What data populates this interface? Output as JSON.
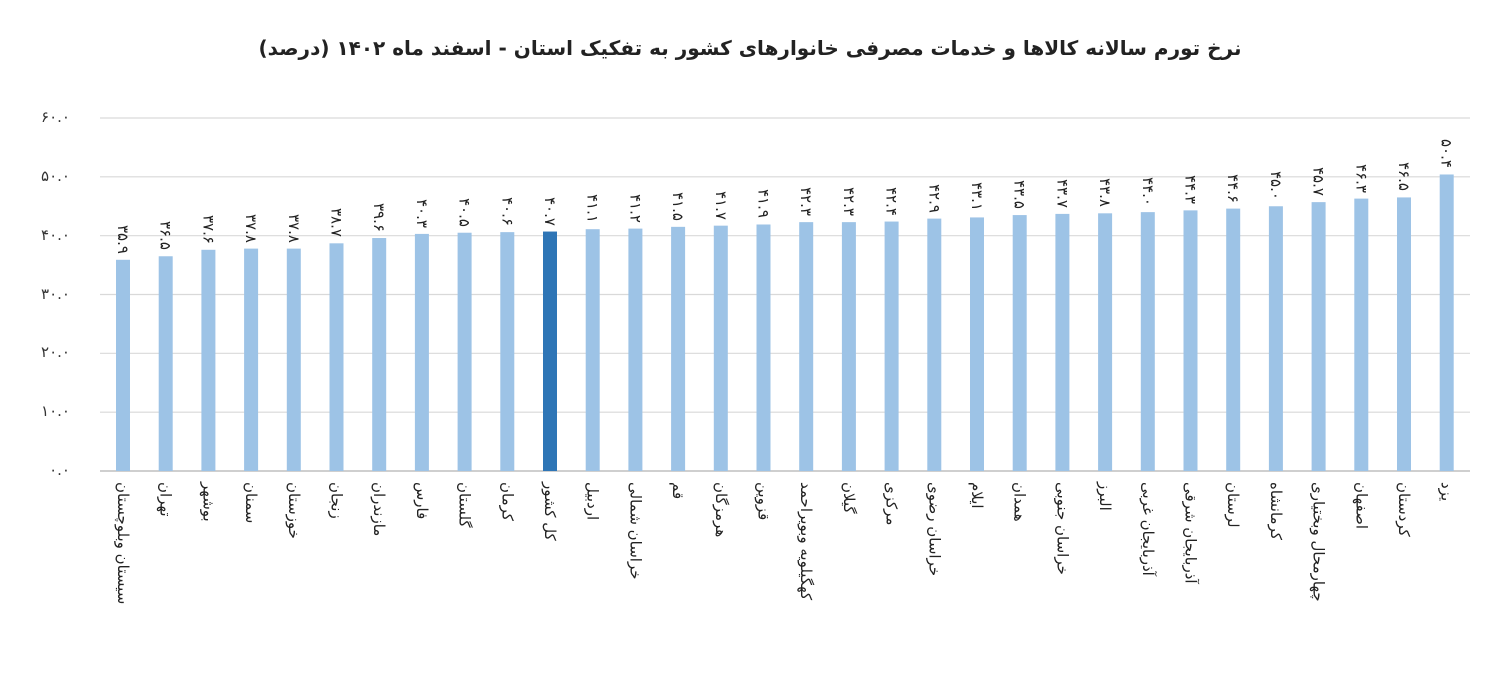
{
  "chart_data": {
    "type": "bar",
    "title": "نرخ تورم سالانه کالاها و خدمات مصرفی خانوارهای کشور به تفکیک استان - اسفند ماه ۱۴۰۲ (درصد)",
    "categories": [
      "سیستان وبلوچستان",
      "تهران",
      "بوشهر",
      "سمنان",
      "خوزستان",
      "زنجان",
      "مازندران",
      "فارس",
      "گلستان",
      "کرمان",
      "کل کشور",
      "اردبیل",
      "خراسان شمالی",
      "قم",
      "هرمزگان",
      "قزوین",
      "کهگیلویه وبویراحمد",
      "گیلان",
      "مرکزی",
      "خراسان رضوی",
      "ایلام",
      "همدان",
      "خراسان جنوبی",
      "البرز",
      "آذربایجان غربی",
      "آذربایجان شرقی",
      "لرستان",
      "کرمانشاه",
      "چهارمحال وبختیاری",
      "اصفهان",
      "کردستان",
      "یزد"
    ],
    "values": [
      35.9,
      36.5,
      37.6,
      37.8,
      37.8,
      38.7,
      39.6,
      40.3,
      40.5,
      40.6,
      40.7,
      41.1,
      41.2,
      41.5,
      41.7,
      41.9,
      42.3,
      42.3,
      42.4,
      42.9,
      43.1,
      43.5,
      43.7,
      43.8,
      44.0,
      44.3,
      44.6,
      45.0,
      45.7,
      46.3,
      46.5,
      50.4
    ],
    "data_labels": [
      "۳۵.۹",
      "۳۶.۵",
      "۳۷.۶",
      "۳۷.۸",
      "۳۷.۸",
      "۳۸.۷",
      "۳۹.۶",
      "۴۰.۳",
      "۴۰.۵",
      "۴۰.۶",
      "۴۰.۷",
      "۴۱.۱",
      "۴۱.۲",
      "۴۱.۵",
      "۴۱.۷",
      "۴۱.۹",
      "۴۲.۳",
      "۴۲.۳",
      "۴۲.۴",
      "۴۲.۹",
      "۴۳.۱",
      "۴۳.۵",
      "۴۳.۷",
      "۴۳.۸",
      "۴۴.۰",
      "۴۴.۳",
      "۴۴.۶",
      "۴۵.۰",
      "۴۵.۷",
      "۴۶.۳",
      "۴۶.۵",
      "۵۰.۴"
    ],
    "highlight_category": "کل کشور",
    "y_ticks": [
      0,
      10,
      20,
      30,
      40,
      50,
      60
    ],
    "y_tick_labels": [
      "۰.۰",
      "۱۰.۰",
      "۲۰.۰",
      "۳۰.۰",
      "۴۰.۰",
      "۵۰.۰",
      "۶۰.۰"
    ],
    "ylim": [
      0,
      60
    ],
    "xlabel": "",
    "ylabel": "",
    "grid": true,
    "legend": "none",
    "colors": {
      "bar": "#9dc3e6",
      "highlight": "#2e75b6",
      "grid": "#d9d9d9"
    }
  }
}
